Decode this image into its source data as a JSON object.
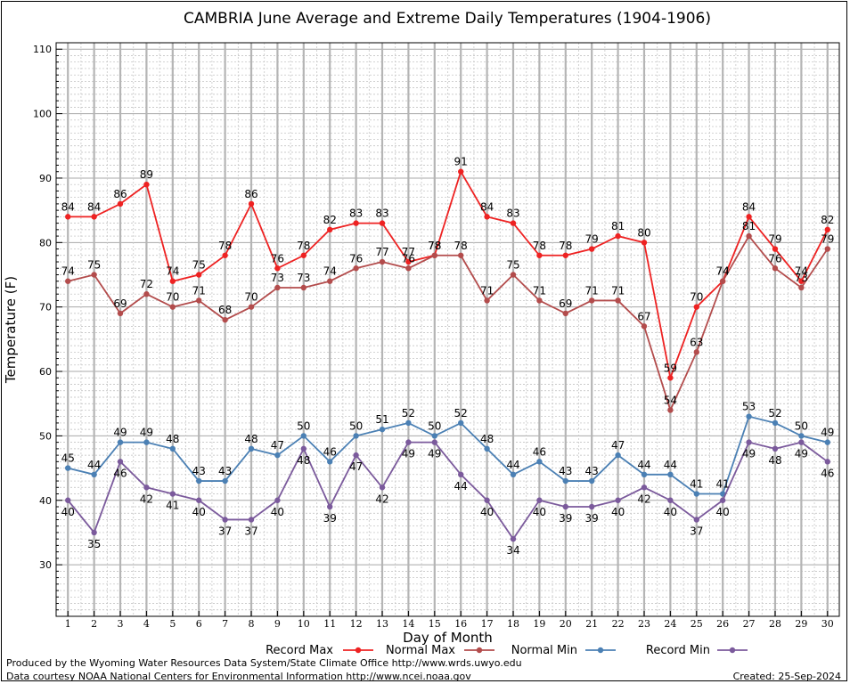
{
  "chart_data": {
    "type": "line",
    "title": "CAMBRIA June Average and Extreme Daily Temperatures (1904-1906)",
    "xlabel": "Day of Month",
    "ylabel": "Temperature (F)",
    "x": [
      1,
      2,
      3,
      4,
      5,
      6,
      7,
      8,
      9,
      10,
      11,
      12,
      13,
      14,
      15,
      16,
      17,
      18,
      19,
      20,
      21,
      22,
      23,
      24,
      25,
      26,
      27,
      28,
      29,
      30
    ],
    "xlim": [
      0.55,
      30.45
    ],
    "ylim": [
      22,
      111
    ],
    "yticks": [
      30,
      40,
      50,
      60,
      70,
      80,
      90,
      100,
      110
    ],
    "grid": true,
    "legend_position": "bottom",
    "series": [
      {
        "name": "Record Max",
        "color": "#ee2222",
        "label_pos": "above",
        "values": [
          84,
          84,
          86,
          89,
          74,
          75,
          78,
          86,
          76,
          78,
          82,
          83,
          83,
          77,
          78,
          91,
          84,
          83,
          78,
          78,
          79,
          81,
          80,
          59,
          70,
          74,
          84,
          79,
          74,
          82
        ]
      },
      {
        "name": "Normal Max",
        "color": "#b34c4c",
        "label_pos": "above",
        "values": [
          74,
          75,
          69,
          72,
          70,
          71,
          68,
          70,
          73,
          73,
          74,
          76,
          77,
          76,
          78,
          78,
          71,
          75,
          71,
          69,
          71,
          71,
          67,
          54,
          63,
          74,
          81,
          76,
          73,
          79
        ]
      },
      {
        "name": "Normal Min",
        "color": "#4b80b4",
        "label_pos": "above",
        "values": [
          45,
          44,
          49,
          49,
          48,
          43,
          43,
          48,
          47,
          50,
          46,
          50,
          51,
          52,
          50,
          52,
          48,
          44,
          46,
          43,
          43,
          47,
          44,
          44,
          41,
          41,
          53,
          52,
          50,
          49
        ]
      },
      {
        "name": "Record Min",
        "color": "#7b5a9c",
        "label_pos": "below",
        "values": [
          40,
          35,
          46,
          42,
          41,
          40,
          37,
          37,
          40,
          48,
          39,
          47,
          42,
          49,
          49,
          44,
          40,
          34,
          40,
          39,
          39,
          40,
          42,
          40,
          37,
          40,
          49,
          48,
          49,
          46
        ]
      }
    ]
  },
  "footer": {
    "produced_by": "Produced by the Wyoming Water Resources Data System/State Climate Office http://www.wrds.uwyo.edu",
    "data_courtesy": "Data courtesy NOAA National Centers for Environmental Information http://www.ncei.noaa.gov",
    "created": "Created:  25-Sep-2024"
  }
}
